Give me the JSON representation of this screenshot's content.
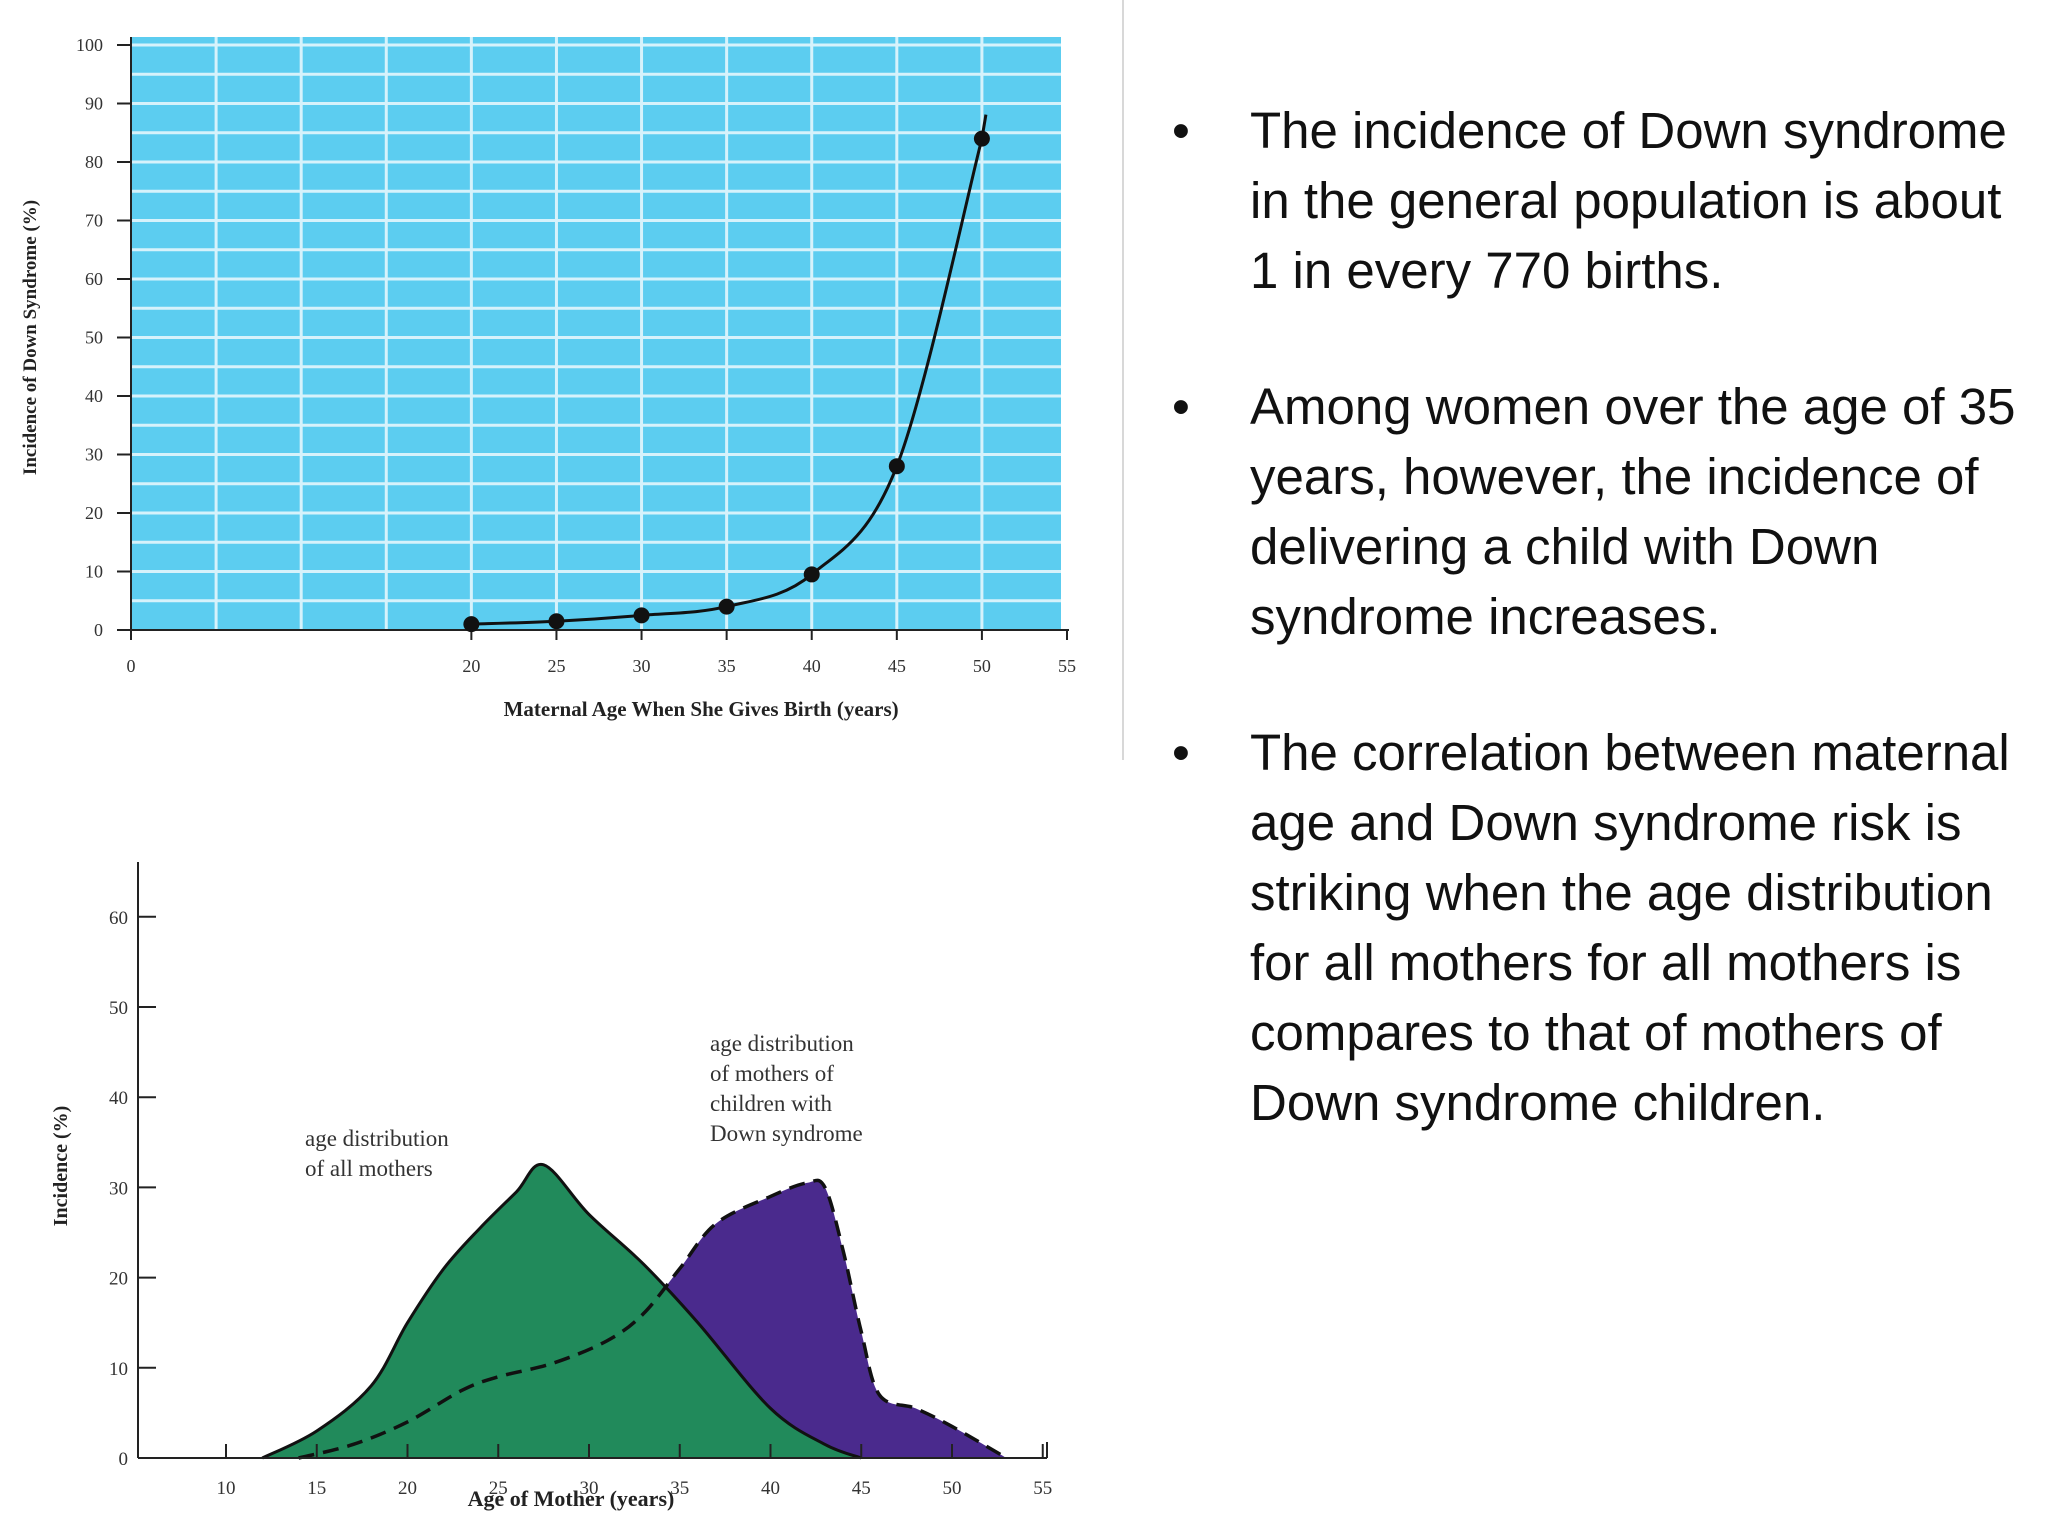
{
  "chart_data": [
    {
      "type": "line",
      "xlabel": "Maternal Age When She Gives Birth (years)",
      "ylabel": "Incidence of Down Syndrome (%)",
      "xlim": [
        0,
        55
      ],
      "ylim": [
        0,
        100
      ],
      "xticks": [
        "0",
        "20",
        "25",
        "30",
        "35",
        "40",
        "45",
        "50",
        "55"
      ],
      "yticks": [
        "0",
        "10",
        "20",
        "30",
        "40",
        "50",
        "60",
        "70",
        "80",
        "90",
        "100"
      ],
      "grid": true,
      "background_color": "#5ccdf0",
      "series": [
        {
          "x": [
            20,
            25,
            30,
            35,
            40,
            45,
            50
          ],
          "values": [
            1,
            1.5,
            2.5,
            4,
            9.5,
            28,
            84
          ]
        }
      ]
    },
    {
      "type": "area",
      "xlabel": "Age of Mother (years)",
      "ylabel": "Incidence (%)",
      "xlim": [
        5,
        55
      ],
      "ylim": [
        0,
        60
      ],
      "xticks": [
        "10",
        "15",
        "20",
        "25",
        "30",
        "35",
        "40",
        "45",
        "50",
        "55"
      ],
      "yticks": [
        "0",
        "10",
        "20",
        "30",
        "40",
        "50",
        "60"
      ],
      "series": [
        {
          "name": "age distribution of all mothers",
          "color": "#218a5b",
          "x": [
            12,
            15,
            18,
            20,
            22,
            24,
            26,
            27.5,
            30,
            33,
            36,
            40,
            43,
            45
          ],
          "values": [
            0,
            3,
            8,
            15,
            21,
            25.5,
            29.5,
            32.5,
            27,
            21.5,
            15,
            5.5,
            1.5,
            0
          ]
        },
        {
          "name": "age distribution of mothers of children with Down syndrome",
          "color": "#4a2a8d",
          "x": [
            14,
            17,
            20,
            23,
            25,
            28,
            31,
            33,
            35,
            37,
            40,
            42,
            43,
            44,
            45,
            46,
            48,
            50,
            53
          ],
          "values": [
            0,
            1.5,
            4,
            7.5,
            9,
            10.5,
            13,
            16,
            21,
            26,
            29,
            30.5,
            30,
            23,
            14,
            7,
            5.5,
            3.5,
            0
          ]
        }
      ],
      "annotations": [
        {
          "lines": [
            "age distribution",
            "of all mothers"
          ]
        },
        {
          "lines": [
            "age distribution",
            "of mothers of",
            "children with",
            "Down syndrome"
          ]
        }
      ]
    }
  ],
  "bullets": [
    {
      "marker": "•",
      "text": "The incidence of Down syndrome in the general population is about 1 in every 770 births."
    },
    {
      "marker": "•",
      "text": "Among women over the age of 35 years, however, the incidence of delivering a child with Down syndrome increases."
    },
    {
      "marker": "•",
      "text": "The correlation between maternal age and Down syndrome risk is striking when the age distribution for all mothers for all mothers is compares to that of mothers of Down syndrome children."
    }
  ]
}
